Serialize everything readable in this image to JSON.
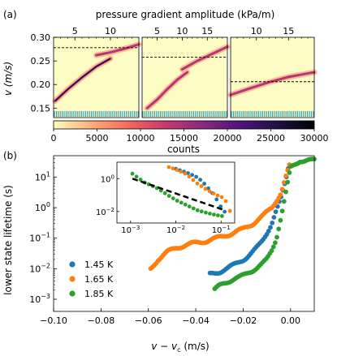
{
  "panel_a": {
    "label": "(a)",
    "top_axis_label": "pressure gradient amplitude (kPa/m)",
    "y_label": "v (m/s)",
    "colorbar_label": "counts",
    "colors": {
      "background": "#fcfcc4",
      "stripe": "#2a9db5",
      "dash": "#000000"
    }
  },
  "panel_b": {
    "label": "(b)",
    "y_label": "lower state lifetime (s)",
    "x_label": "v − v_c (m/s)",
    "colors": {
      "1.45 K": "#1f77b4",
      "1.65 K": "#ff7f0e",
      "1.85 K": "#2ca02c"
    }
  },
  "chart_data": [
    {
      "type": "heatmap",
      "panel": "(a) left",
      "top_axis": {
        "label": "pressure gradient amplitude (kPa/m)",
        "ticks": [
          "5",
          "10"
        ],
        "range": [
          2,
          14
        ]
      },
      "y_axis": {
        "label": "v (m/s)",
        "ticks": [
          "0.15",
          "0.20",
          "0.25",
          "0.30"
        ],
        "range": [
          0.13,
          0.3
        ]
      },
      "dashed_line_v": 0.278,
      "lower_branch": [
        [
          2.2,
          0.165
        ],
        [
          4,
          0.19
        ],
        [
          6,
          0.215
        ],
        [
          8,
          0.238
        ],
        [
          10,
          0.255
        ]
      ],
      "upper_branch": [
        [
          8,
          0.262
        ],
        [
          10,
          0.268
        ],
        [
          12,
          0.276
        ],
        [
          14,
          0.285
        ]
      ]
    },
    {
      "type": "heatmap",
      "panel": "(a) middle",
      "top_axis": {
        "ticks": [
          "5",
          "10",
          "15"
        ],
        "range": [
          2,
          19
        ]
      },
      "y_axis": {
        "range": [
          0.13,
          0.3
        ]
      },
      "dashed_line_v": 0.258,
      "lower_branch": [
        [
          3,
          0.15
        ],
        [
          5,
          0.168
        ],
        [
          7,
          0.19
        ],
        [
          9,
          0.21
        ],
        [
          11,
          0.226
        ]
      ],
      "upper_branch": [
        [
          10,
          0.232
        ],
        [
          13,
          0.25
        ],
        [
          16,
          0.265
        ],
        [
          19,
          0.28
        ]
      ]
    },
    {
      "type": "heatmap",
      "panel": "(a) right",
      "top_axis": {
        "ticks": [
          "10",
          "15"
        ],
        "range": [
          6,
          19
        ]
      },
      "y_axis": {
        "range": [
          0.13,
          0.3
        ]
      },
      "dashed_line_v": 0.206,
      "branch": [
        [
          6,
          0.178
        ],
        [
          9,
          0.192
        ],
        [
          12,
          0.205
        ],
        [
          15,
          0.216
        ],
        [
          19,
          0.226
        ]
      ]
    },
    {
      "type": "heatmap",
      "panel": "colorbar",
      "label": "counts",
      "ticks": [
        "0",
        "5000",
        "10000",
        "15000",
        "20000",
        "25000",
        "30000"
      ],
      "range": [
        0,
        30000
      ],
      "colormap": [
        "#fcfdbf",
        "#fcb07a",
        "#f4695c",
        "#c7386d",
        "#8c2981",
        "#51127c",
        "#1d1147",
        "#000004"
      ]
    },
    {
      "type": "scatter",
      "panel": "(b) main",
      "x_axis": {
        "label": "v − v_c (m/s)",
        "ticks": [
          "−0.10",
          "−0.08",
          "−0.06",
          "−0.04",
          "−0.02",
          "0.00"
        ],
        "range": [
          -0.1,
          0.01
        ]
      },
      "y_axis": {
        "label": "lower state lifetime (s)",
        "ticks": [
          "10⁻³",
          "10⁻²",
          "10⁻¹",
          "10⁰",
          "10¹"
        ],
        "scale": "log",
        "range": [
          0.0004,
          50
        ]
      },
      "legend_position": "lower-left",
      "series": [
        {
          "name": "1.45 K",
          "color": "#1f77b4",
          "points": [
            [
              -0.034,
              0.0065
            ],
            [
              -0.032,
              0.007
            ],
            [
              -0.03,
              0.008
            ],
            [
              -0.028,
              0.0095
            ],
            [
              -0.026,
              0.011
            ],
            [
              -0.024,
              0.013
            ],
            [
              -0.022,
              0.016
            ],
            [
              -0.02,
              0.02
            ],
            [
              -0.018,
              0.026
            ],
            [
              -0.016,
              0.035
            ],
            [
              -0.014,
              0.05
            ],
            [
              -0.012,
              0.08
            ],
            [
              -0.01,
              0.15
            ],
            [
              -0.008,
              0.3
            ],
            [
              -0.006,
              0.8
            ],
            [
              -0.004,
              2
            ],
            [
              -0.002,
              8
            ],
            [
              -0.001,
              20
            ],
            [
              0.0,
              30
            ]
          ]
        },
        {
          "name": "1.65 K",
          "color": "#ff7f0e",
          "points": [
            [
              -0.059,
              0.01
            ],
            [
              -0.056,
              0.02
            ],
            [
              -0.052,
              0.035
            ],
            [
              -0.048,
              0.05
            ],
            [
              -0.044,
              0.06
            ],
            [
              -0.04,
              0.07
            ],
            [
              -0.036,
              0.08
            ],
            [
              -0.032,
              0.095
            ],
            [
              -0.028,
              0.12
            ],
            [
              -0.024,
              0.15
            ],
            [
              -0.02,
              0.2
            ],
            [
              -0.016,
              0.3
            ],
            [
              -0.012,
              0.5
            ],
            [
              -0.008,
              1.0
            ],
            [
              -0.004,
              3
            ],
            [
              -0.002,
              10
            ],
            [
              0.0,
              30
            ]
          ]
        },
        {
          "name": "1.85 K",
          "color": "#2ca02c",
          "points": [
            [
              -0.032,
              0.002
            ],
            [
              -0.03,
              0.0028
            ],
            [
              -0.028,
              0.0035
            ],
            [
              -0.026,
              0.004
            ],
            [
              -0.024,
              0.0045
            ],
            [
              -0.022,
              0.005
            ],
            [
              -0.02,
              0.006
            ],
            [
              -0.018,
              0.0075
            ],
            [
              -0.016,
              0.009
            ],
            [
              -0.014,
              0.011
            ],
            [
              -0.012,
              0.014
            ],
            [
              -0.01,
              0.02
            ],
            [
              -0.008,
              0.04
            ],
            [
              -0.006,
              0.1
            ],
            [
              -0.004,
              0.5
            ],
            [
              -0.002,
              3
            ],
            [
              0.0,
              20
            ],
            [
              0.004,
              35
            ],
            [
              0.008,
              35
            ],
            [
              0.01,
              35
            ]
          ]
        }
      ]
    },
    {
      "type": "scatter",
      "panel": "(b) inset",
      "x_axis": {
        "ticks": [
          "10⁻³",
          "10⁻²",
          "10⁻¹"
        ],
        "scale": "log",
        "range": [
          0.0005,
          0.2
        ]
      },
      "y_axis": {
        "ticks": [
          "10⁻²",
          "10⁰"
        ],
        "scale": "log",
        "range": [
          0.002,
          10
        ]
      },
      "series": [
        {
          "name": "1.45 K",
          "color": "#1f77b4",
          "points": [
            [
              0.01,
              4
            ],
            [
              0.02,
              2
            ],
            [
              0.03,
              1.2
            ],
            [
              0.04,
              0.6
            ],
            [
              0.05,
              0.3
            ],
            [
              0.07,
              0.1
            ],
            [
              0.09,
              0.03
            ],
            [
              0.11,
              0.012
            ],
            [
              0.13,
              0.008
            ]
          ]
        },
        {
          "name": "1.65 K",
          "color": "#ff7f0e",
          "points": [
            [
              0.007,
              5
            ],
            [
              0.009,
              4
            ],
            [
              0.012,
              3
            ],
            [
              0.016,
              2
            ],
            [
              0.02,
              1.3
            ],
            [
              0.03,
              0.5
            ],
            [
              0.05,
              0.2
            ],
            [
              0.08,
              0.1
            ],
            [
              0.11,
              0.07
            ],
            [
              0.13,
              0.04
            ],
            [
              0.15,
              0.02
            ],
            [
              0.16,
              0.008
            ]
          ]
        },
        {
          "name": "1.85 K",
          "color": "#2ca02c",
          "points": [
            [
              0.0011,
              2
            ],
            [
              0.002,
              0.6
            ],
            [
              0.004,
              0.25
            ],
            [
              0.006,
              0.12
            ],
            [
              0.01,
              0.05
            ],
            [
              0.02,
              0.02
            ],
            [
              0.03,
              0.012
            ],
            [
              0.05,
              0.008
            ],
            [
              0.08,
              0.006
            ],
            [
              0.12,
              0.005
            ]
          ]
        }
      ],
      "fit_line": [
        [
          0.0011,
          1.0
        ],
        [
          0.12,
          0.012
        ]
      ]
    }
  ]
}
